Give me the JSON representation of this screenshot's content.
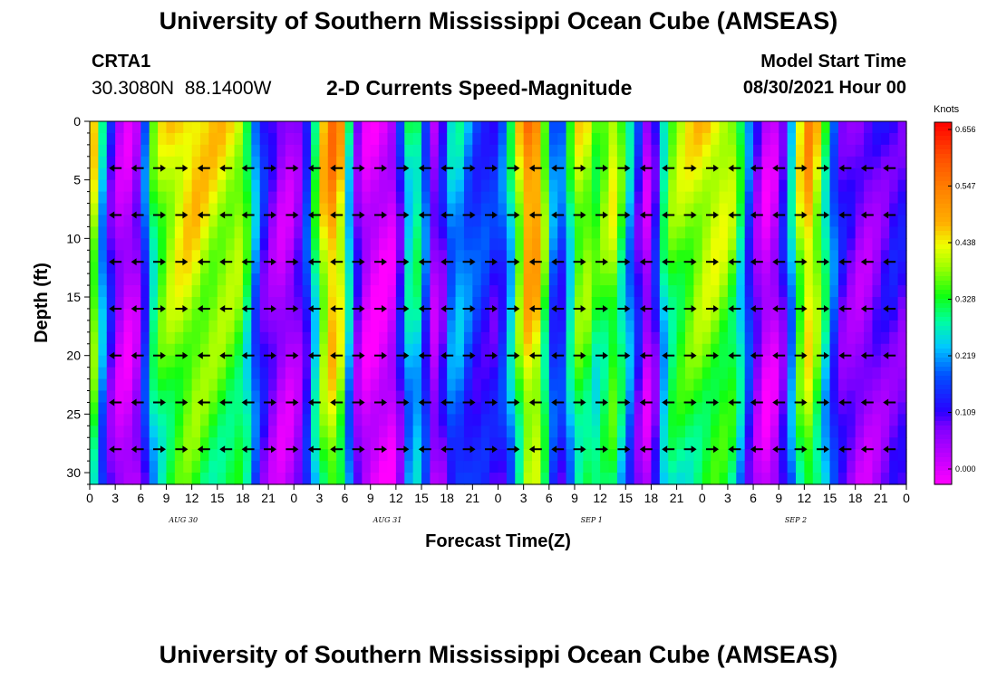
{
  "header": {
    "title": "University of Southern Mississippi Ocean Cube (AMSEAS)",
    "station": "CRTA1",
    "lat": "30.3080N",
    "lon": "88.1400W",
    "subtitle": "2-D Currents Speed-Magnitude",
    "model_start_label": "Model Start Time",
    "model_start_value": "08/30/2021 Hour 00"
  },
  "footer": {
    "title": "University of Southern Mississippi Ocean Cube (AMSEAS)"
  },
  "chart_data": {
    "type": "heatmap",
    "title": "2-D Currents Speed-Magnitude",
    "xlabel": "Forecast Time(Z)",
    "ylabel": "Depth (ft)",
    "x_range_hours": [
      0,
      96
    ],
    "y_range_ft": [
      0,
      31
    ],
    "x_tick_labels": [
      "0",
      "3",
      "6",
      "9",
      "12",
      "15",
      "18",
      "21",
      "0",
      "3",
      "6",
      "9",
      "12",
      "15",
      "18",
      "21",
      "0",
      "3",
      "6",
      "9",
      "12",
      "15",
      "18",
      "21",
      "0",
      "3",
      "6",
      "9",
      "12",
      "15",
      "18",
      "21",
      "0"
    ],
    "y_ticks": [
      0,
      5,
      10,
      15,
      20,
      25,
      30
    ],
    "day_labels": [
      {
        "hour": 11,
        "text": "AUG 30"
      },
      {
        "hour": 35,
        "text": "AUG 31"
      },
      {
        "hour": 59,
        "text": "SEP 1"
      },
      {
        "hour": 83,
        "text": "SEP 2"
      }
    ],
    "colorbar": {
      "unit_label": "Knots",
      "ticks": [
        "0.656",
        "0.547",
        "0.438",
        "0.328",
        "0.219",
        "0.109",
        "0.000"
      ],
      "min": 0.0,
      "max": 0.656
    },
    "speed_profile_knots_by_hour": [
      [
        0,
        0.52
      ],
      [
        2,
        0.18
      ],
      [
        4,
        0.03
      ],
      [
        6,
        0.1
      ],
      [
        7,
        0.3
      ],
      [
        8,
        0.4
      ],
      [
        10,
        0.46
      ],
      [
        12,
        0.48
      ],
      [
        14,
        0.45
      ],
      [
        16,
        0.44
      ],
      [
        18,
        0.42
      ],
      [
        19,
        0.3
      ],
      [
        20,
        0.18
      ],
      [
        21,
        0.12
      ],
      [
        23,
        0.05
      ],
      [
        25,
        0.12
      ],
      [
        26,
        0.25
      ],
      [
        27,
        0.42
      ],
      [
        28,
        0.52
      ],
      [
        29,
        0.56
      ],
      [
        30,
        0.4
      ],
      [
        31,
        0.18
      ],
      [
        32,
        0.05
      ],
      [
        34,
        0.02
      ],
      [
        36,
        0.05
      ],
      [
        37,
        0.25
      ],
      [
        38,
        0.35
      ],
      [
        39,
        0.3
      ],
      [
        40,
        0.12
      ],
      [
        41,
        0.05
      ],
      [
        42,
        0.22
      ],
      [
        43,
        0.28
      ],
      [
        44,
        0.25
      ],
      [
        45,
        0.2
      ],
      [
        47,
        0.18
      ],
      [
        48,
        0.15
      ],
      [
        50,
        0.35
      ],
      [
        51,
        0.52
      ],
      [
        52,
        0.56
      ],
      [
        53,
        0.5
      ],
      [
        54,
        0.3
      ],
      [
        55,
        0.15
      ],
      [
        56,
        0.25
      ],
      [
        57,
        0.4
      ],
      [
        58,
        0.45
      ],
      [
        59,
        0.4
      ],
      [
        60,
        0.35
      ],
      [
        61,
        0.45
      ],
      [
        62,
        0.42
      ],
      [
        63,
        0.3
      ],
      [
        64,
        0.22
      ],
      [
        65,
        0.08
      ],
      [
        66,
        0.05
      ],
      [
        67,
        0.25
      ],
      [
        68,
        0.38
      ],
      [
        70,
        0.42
      ],
      [
        72,
        0.45
      ],
      [
        74,
        0.45
      ],
      [
        76,
        0.4
      ],
      [
        77,
        0.25
      ],
      [
        78,
        0.15
      ],
      [
        79,
        0.05
      ],
      [
        80,
        0.03
      ],
      [
        81,
        0.08
      ],
      [
        82,
        0.2
      ],
      [
        83,
        0.35
      ],
      [
        84,
        0.52
      ],
      [
        85,
        0.5
      ],
      [
        86,
        0.38
      ],
      [
        87,
        0.28
      ],
      [
        88,
        0.15
      ],
      [
        90,
        0.1
      ],
      [
        91,
        0.08
      ],
      [
        93,
        0.12
      ],
      [
        95,
        0.15
      ],
      [
        96,
        0.12
      ]
    ],
    "arrow_depths_ft": [
      4,
      8,
      12,
      16,
      20,
      24,
      28
    ]
  }
}
